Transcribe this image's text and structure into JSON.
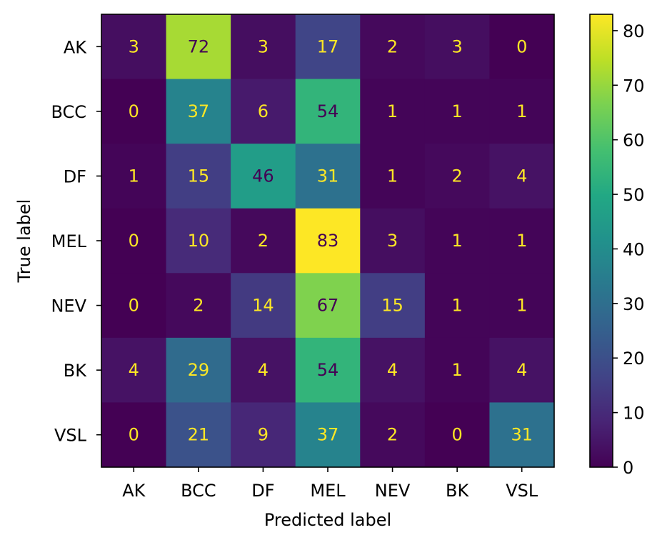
{
  "chart_data": {
    "type": "heatmap",
    "title": "",
    "xlabel": "Predicted label",
    "ylabel": "True label",
    "x_categories": [
      "AK",
      "BCC",
      "DF",
      "MEL",
      "NEV",
      "BK",
      "VSL"
    ],
    "y_categories": [
      "AK",
      "BCC",
      "DF",
      "MEL",
      "NEV",
      "BK",
      "VSL"
    ],
    "matrix": [
      [
        3,
        72,
        3,
        17,
        2,
        3,
        0
      ],
      [
        0,
        37,
        6,
        54,
        1,
        1,
        1
      ],
      [
        1,
        15,
        46,
        31,
        1,
        2,
        4
      ],
      [
        0,
        10,
        2,
        83,
        3,
        1,
        1
      ],
      [
        0,
        2,
        14,
        67,
        15,
        1,
        1
      ],
      [
        4,
        29,
        4,
        54,
        4,
        1,
        4
      ],
      [
        0,
        21,
        9,
        37,
        2,
        0,
        31
      ]
    ],
    "colormap": "viridis",
    "vmin": 0,
    "vmax": 83,
    "colorbar_ticks": [
      0,
      10,
      20,
      30,
      40,
      50,
      60,
      70,
      80
    ],
    "text_color_light": "#fde725",
    "text_color_dark": "#440154"
  }
}
